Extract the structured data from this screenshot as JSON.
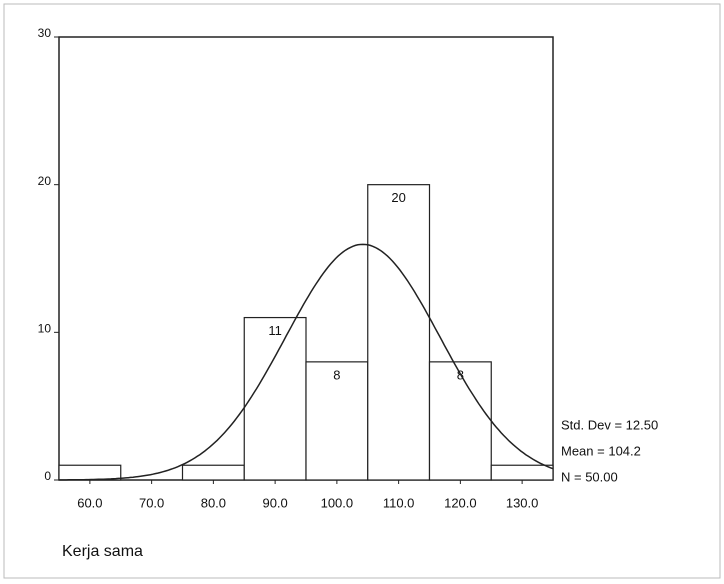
{
  "chart_data": {
    "type": "histogram",
    "x_label": "Kerja sama",
    "bins": [
      55,
      65,
      75,
      85,
      95,
      105,
      115,
      125,
      135
    ],
    "values": [
      1,
      0,
      1,
      11,
      8,
      20,
      8,
      1
    ],
    "value_labels": [
      null,
      null,
      null,
      "11",
      "8",
      "20",
      "8",
      null
    ],
    "xlim": [
      55,
      135
    ],
    "xticks": [
      {
        "value": 60,
        "label": "60.0"
      },
      {
        "value": 70,
        "label": "70.0"
      },
      {
        "value": 80,
        "label": "80.0"
      },
      {
        "value": 90,
        "label": "90.0"
      },
      {
        "value": 100,
        "label": "100.0"
      },
      {
        "value": 110,
        "label": "110.0"
      },
      {
        "value": 120,
        "label": "120.0"
      },
      {
        "value": 130,
        "label": "130.0"
      }
    ],
    "ylim": [
      0,
      30
    ],
    "yticks": [
      0,
      10,
      20,
      30
    ],
    "color": "#ffffff",
    "stats": {
      "std_dev": {
        "value": 12.5,
        "label": "Std. Dev = 12.50"
      },
      "mean": {
        "value": 104.2,
        "label": "Mean = 104.2"
      },
      "n": {
        "value": 50,
        "label": "N = 50.00"
      }
    }
  }
}
